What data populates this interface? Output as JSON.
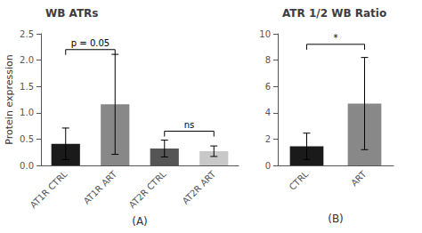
{
  "chart_data": [
    {
      "type": "bar",
      "title": "WB ATRs",
      "ylabel": "Protein expression",
      "xlabel": "(A)",
      "categories": [
        "AT1R CTRL",
        "AT1R ART",
        "AT2R CTRL",
        "AT2R ART"
      ],
      "values": [
        0.41,
        1.16,
        0.32,
        0.27
      ],
      "errors": [
        0.3,
        0.95,
        0.16,
        0.1
      ],
      "colors": [
        "#1a1a1a",
        "#888888",
        "#555555",
        "#c8c8c8"
      ],
      "ylim": [
        0,
        2.5
      ],
      "yticks": [
        {
          "value": 0,
          "label": "0.0"
        },
        0.5,
        {
          "value": 1,
          "label": "1.0"
        },
        1.5,
        {
          "value": 2,
          "label": "2.0"
        },
        2.5
      ],
      "grid": false,
      "annotations": [
        {
          "text": "p = 0.05",
          "from": "AT1R CTRL",
          "to": "AT1R ART",
          "y": 2.2
        },
        {
          "text": "ns",
          "from": "AT2R CTRL",
          "to": "AT2R ART",
          "y": 0.65
        }
      ]
    },
    {
      "type": "bar",
      "title": "ATR 1/2 WB Ratio",
      "xlabel": "(B)",
      "categories": [
        "CTRL",
        "ART"
      ],
      "values": [
        1.45,
        4.7
      ],
      "errors": [
        1.0,
        3.5
      ],
      "colors": [
        "#1a1a1a",
        "#888888"
      ],
      "ylim": [
        0,
        10
      ],
      "yticks": [
        0,
        2,
        4,
        6,
        8,
        10
      ],
      "grid": false,
      "annotations": [
        {
          "text": "*",
          "from": "CTRL",
          "to": "ART",
          "y": 9.2
        }
      ]
    }
  ]
}
